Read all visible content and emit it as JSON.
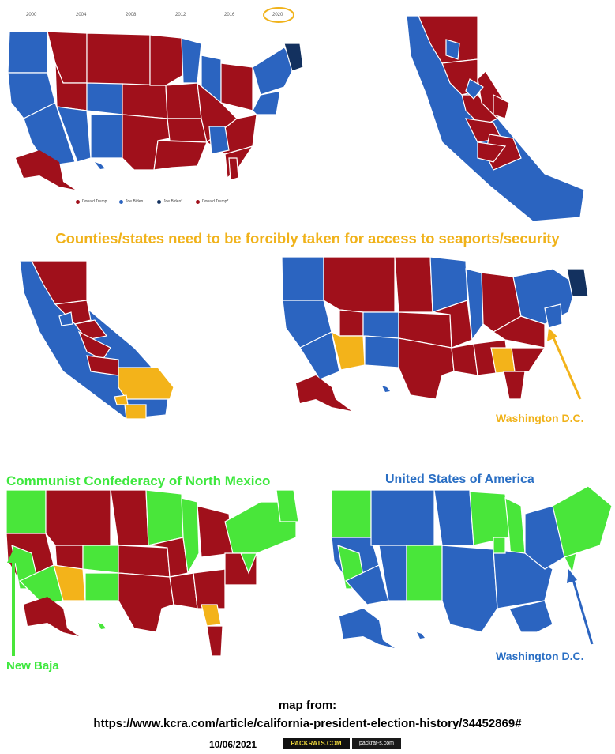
{
  "colors": {
    "red": "#a0101b",
    "blue": "#2b64c0",
    "navy": "#13315f",
    "orange": "#f3b31a",
    "green": "#49e63a",
    "border": "#ffffff"
  },
  "year_bar": {
    "years": [
      "2000",
      "2004",
      "2008",
      "2012",
      "2016",
      "2020"
    ],
    "selected": "2020"
  },
  "legend": {
    "items": [
      {
        "label": "Donald Trump",
        "color": "#a0101b"
      },
      {
        "label": "Joe Biden",
        "color": "#2b64c0"
      },
      {
        "label": "Joe Biden*",
        "color": "#13315f"
      },
      {
        "label": "Donald Trump*",
        "color": "#a0101b"
      }
    ]
  },
  "headline": "Counties/states need to be forcibly taken for access to seaports/security",
  "labels": {
    "dc_top": "Washington D.C.",
    "north_mexico": "Communist Confederacy of North Mexico",
    "usa": "United States of America",
    "new_baja": "New Baja",
    "dc_bottom": "Washington D.C."
  },
  "footer": {
    "line1": "map from:",
    "line2": "https://www.kcra.com/article/california-president-election-history/34452869#",
    "date": "10/06/2021",
    "badge1": "PACKRATS.COM",
    "badge2": "packrat-s.com"
  }
}
